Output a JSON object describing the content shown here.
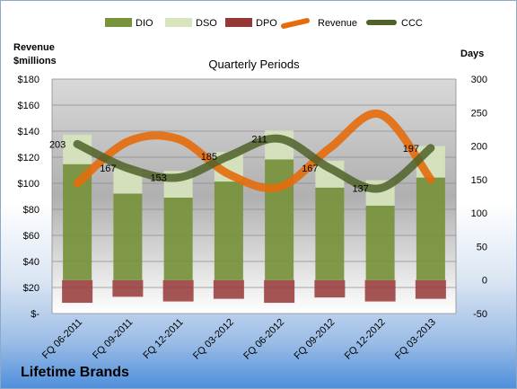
{
  "brand": "Lifetime Brands",
  "chart_data": {
    "type": "bar",
    "title": "Quarterly Periods",
    "left_axis_title": [
      "Revenue",
      "$millions"
    ],
    "right_axis_title": "Days",
    "categories": [
      "FQ 06-2011",
      "FQ 09-2011",
      "FQ 12-2011",
      "FQ 03-2012",
      "FQ 06-2012",
      "FQ 09-2012",
      "FQ 12-2012",
      "FQ 03-2013"
    ],
    "left_axis": {
      "min": 0,
      "max": 180,
      "step": 20,
      "tick_labels": [
        "$-",
        "$20",
        "$40",
        "$60",
        "$80",
        "$100",
        "$120",
        "$140",
        "$160",
        "$180"
      ]
    },
    "right_axis": {
      "min": -50,
      "max": 300,
      "step": 50,
      "tick_labels": [
        "-50",
        "0",
        "50",
        "100",
        "150",
        "200",
        "250",
        "300"
      ]
    },
    "series": [
      {
        "name": "DIO",
        "type": "stacked-bar",
        "axis": "right",
        "color": "#77933c",
        "values": [
          173,
          129,
          123,
          147,
          180,
          138,
          111,
          153
        ]
      },
      {
        "name": "DSO",
        "type": "stacked-bar",
        "axis": "right",
        "color": "#d7e4bd",
        "values": [
          44,
          38,
          40,
          44,
          43,
          40,
          38,
          47
        ]
      },
      {
        "name": "DPO",
        "type": "bar-below-zero",
        "axis": "right",
        "color": "#953735",
        "values": [
          -34,
          -25,
          -32,
          -28,
          -34,
          -26,
          -32,
          -28
        ]
      },
      {
        "name": "Revenue",
        "type": "line",
        "axis": "left",
        "color": "#e46c0a",
        "values": [
          100,
          132,
          134,
          107,
          97,
          127,
          153,
          103
        ]
      },
      {
        "name": "CCC",
        "type": "line",
        "axis": "right",
        "color": "#4f6228",
        "values": [
          203,
          167,
          153,
          185,
          211,
          167,
          137,
          197
        ]
      }
    ],
    "data_labels": [
      "203",
      "167",
      "153",
      "185",
      "211",
      "167",
      "137",
      "197"
    ],
    "legend_position": "top",
    "grid": true
  }
}
